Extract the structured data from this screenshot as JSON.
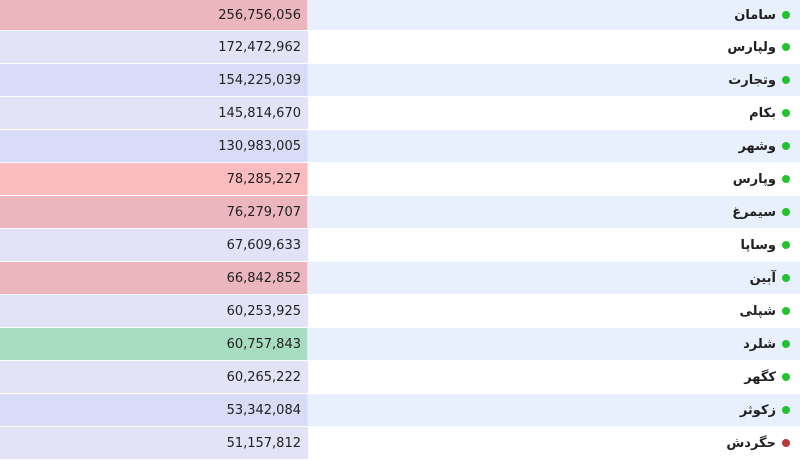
{
  "colors": {
    "dot_green": "#22c42e",
    "dot_red": "#b83737",
    "value_bg_red_dark": "#ecb6bf",
    "value_bg_red_light": "#fbbcbf",
    "value_bg_lavender": "#e3e3f8",
    "value_bg_lavender_dark": "#d9dcf7",
    "value_bg_green": "#a7dcc0"
  },
  "rows": [
    {
      "name": "سامان",
      "value": "256,756,056",
      "status": "green",
      "value_bg": "#ecb6bf"
    },
    {
      "name": "ولپارس",
      "value": "172,472,962",
      "status": "green",
      "value_bg": "#e3e3f8"
    },
    {
      "name": "وتجارت",
      "value": "154,225,039",
      "status": "green",
      "value_bg": "#d9dcf7"
    },
    {
      "name": "بکام",
      "value": "145,814,670",
      "status": "green",
      "value_bg": "#e3e3f8"
    },
    {
      "name": "وشهر",
      "value": "130,983,005",
      "status": "green",
      "value_bg": "#d9dcf7"
    },
    {
      "name": "وپارس",
      "value": "78,285,227",
      "status": "green",
      "value_bg": "#fbbcbf"
    },
    {
      "name": "سیمرغ",
      "value": "76,279,707",
      "status": "green",
      "value_bg": "#ecb6bf"
    },
    {
      "name": "وساپا",
      "value": "67,609,633",
      "status": "green",
      "value_bg": "#e3e3f8"
    },
    {
      "name": "آبین",
      "value": "66,842,852",
      "status": "green",
      "value_bg": "#ecb6bf"
    },
    {
      "name": "شپلی",
      "value": "60,253,925",
      "status": "green",
      "value_bg": "#e3e3f8"
    },
    {
      "name": "شلرد",
      "value": "60,757,843",
      "status": "green",
      "value_bg": "#a7dcc0"
    },
    {
      "name": "کگهر",
      "value": "60,265,222",
      "status": "green",
      "value_bg": "#e3e3f8"
    },
    {
      "name": "زکوثر",
      "value": "53,342,084",
      "status": "green",
      "value_bg": "#d9dcf7"
    },
    {
      "name": "حگردش",
      "value": "51,157,812",
      "status": "red",
      "value_bg": "#e3e3f8"
    }
  ]
}
